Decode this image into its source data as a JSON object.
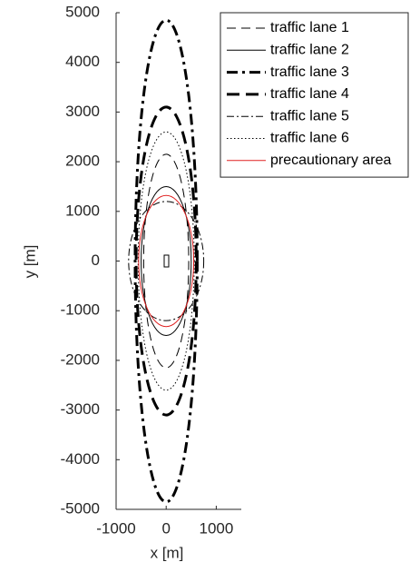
{
  "chart_data": {
    "type": "ellipse",
    "xlabel": "x [m]",
    "ylabel": "y [m]",
    "xlim": [
      -1000,
      1500
    ],
    "ylim": [
      -5000,
      5000
    ],
    "xticks": [
      -1000,
      0,
      1000
    ],
    "yticks": [
      -5000,
      -4000,
      -3000,
      -2000,
      -1000,
      0,
      1000,
      2000,
      3000,
      4000,
      5000
    ],
    "center": [
      0,
      0
    ],
    "legend": "top-right",
    "series": [
      {
        "name": "traffic lane 1",
        "color": "#000000",
        "line_style": "dashed",
        "line_width": 1,
        "rx": 450,
        "ry": 2150
      },
      {
        "name": "traffic lane 2",
        "color": "#000000",
        "line_style": "solid",
        "line_width": 1,
        "rx": 500,
        "ry": 1500
      },
      {
        "name": "traffic lane 3",
        "color": "#000000",
        "line_style": "dash-dot",
        "line_width": 3,
        "rx": 620,
        "ry": 4850
      },
      {
        "name": "traffic lane 4",
        "color": "#000000",
        "line_style": "dashed",
        "line_width": 3,
        "rx": 600,
        "ry": 3100
      },
      {
        "name": "traffic lane 5",
        "color": "#000000",
        "line_style": "dash-dot",
        "line_width": 1,
        "rx": 750,
        "ry": 1200
      },
      {
        "name": "traffic lane 6",
        "color": "#000000",
        "line_style": "dotted",
        "line_width": 1,
        "rx": 560,
        "ry": 2600
      },
      {
        "name": "precautionary area",
        "color": "#e02020",
        "line_style": "solid",
        "line_width": 1,
        "rx": 550,
        "ry": 1320
      }
    ]
  }
}
